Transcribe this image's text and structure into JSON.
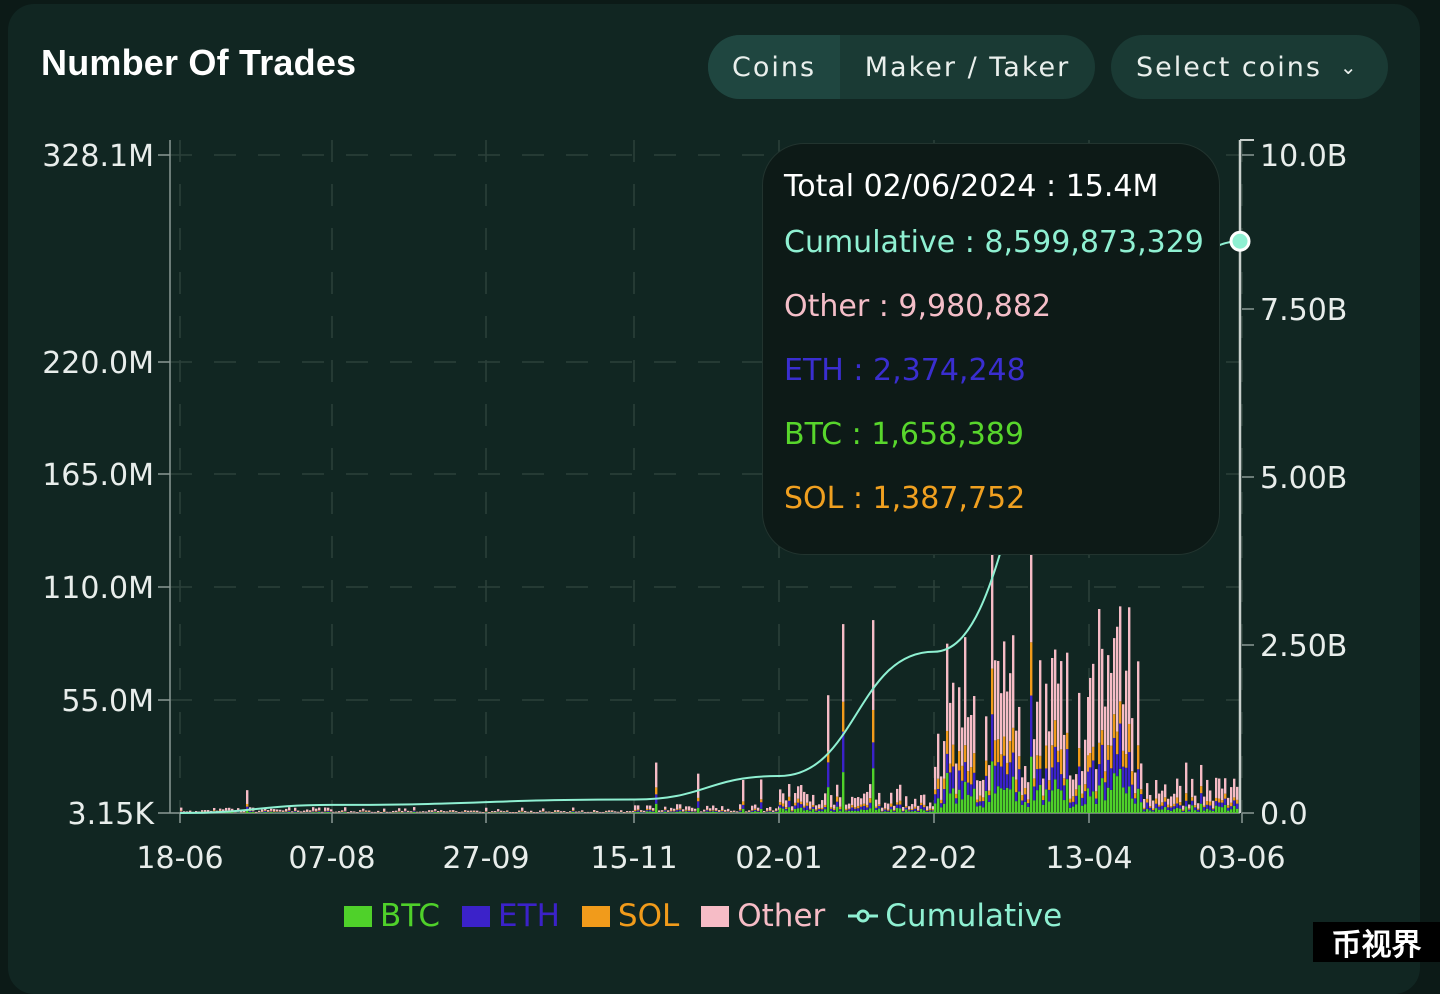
{
  "header": {
    "title": "Number Of Trades",
    "tabs": [
      {
        "label": "Coins",
        "active": true
      },
      {
        "label": "Maker / Taker",
        "active": false
      }
    ],
    "select_label": "Select coins",
    "chevron_icon": "chevron-down-icon"
  },
  "tooltip": {
    "total": "Total 02/06/2024 : 15.4M",
    "rows": [
      {
        "text": "Cumulative : 8,599,873,329",
        "color": "#8ff0d2"
      },
      {
        "text": "Other : 9,980,882",
        "color": "#f4bec8"
      },
      {
        "text": "ETH : 2,374,248",
        "color": "#3a2ed0"
      },
      {
        "text": "BTC : 1,658,389",
        "color": "#58d62c"
      },
      {
        "text": "SOL : 1,387,752",
        "color": "#f0a020"
      }
    ]
  },
  "watermark": "币视界",
  "chart_data": {
    "type": "bar",
    "title": "Number Of Trades",
    "left_axis": {
      "ticks": [
        3150,
        55000000,
        110000000,
        165000000,
        220000000,
        328100000
      ],
      "tick_labels": [
        "3.15K",
        "55.0M",
        "110.0M",
        "165.0M",
        "220.0M",
        "328.1M"
      ]
    },
    "right_axis": {
      "ticks": [
        0,
        2500000000,
        5000000000,
        7500000000,
        10000000000
      ],
      "tick_labels": [
        "0.0",
        "2.50B",
        "5.00B",
        "7.50B",
        "10.0B"
      ]
    },
    "x_ticks": [
      "18-06",
      "07-08",
      "27-09",
      "15-11",
      "02-01",
      "22-02",
      "13-04",
      "03-06"
    ],
    "grid": true,
    "legend_position": "bottom",
    "series": [
      {
        "name": "BTC",
        "color": "#4fd12a"
      },
      {
        "name": "ETH",
        "color": "#3b22c9"
      },
      {
        "name": "SOL",
        "color": "#f19b1b"
      },
      {
        "name": "Other",
        "color": "#f6bcc6"
      },
      {
        "name": "Cumulative",
        "color": "#8ff0d2"
      }
    ],
    "highlight": {
      "date": "02/06/2024",
      "total": 15400000,
      "cumulative": 8599873329,
      "Other": 9980882,
      "ETH": 2374248,
      "BTC": 1658389,
      "SOL": 1387752
    },
    "approx_totals_by_period": [
      {
        "period": "18-06 to 07-08",
        "typical_total": 2000000,
        "peak_total": 15000000
      },
      {
        "period": "07-08 to 15-11",
        "typical_total": 1000000,
        "peak_total": 3000000
      },
      {
        "period": "15-11 to 02-01",
        "typical_total": 3000000,
        "peak_total": 25000000
      },
      {
        "period": "02-01 to 22-02",
        "typical_total": 10000000,
        "peak_total": 95000000
      },
      {
        "period": "22-02 to 13-04",
        "typical_total": 60000000,
        "peak_total": 160000000
      },
      {
        "period": "13-04 to 24-04",
        "typical_total": 70000000,
        "peak_total": 130000000
      },
      {
        "period": "24-04 to 03-06",
        "typical_total": 12000000,
        "peak_total": 25000000
      }
    ],
    "cumulative_path": [
      {
        "x": "18-06",
        "y": 0
      },
      {
        "x": "07-08",
        "y": 120000000
      },
      {
        "x": "15-11",
        "y": 200000000
      },
      {
        "x": "02-01",
        "y": 550000000
      },
      {
        "x": "22-02",
        "y": 2400000000
      },
      {
        "x": "13-04",
        "y": 6500000000
      },
      {
        "x": "03-06",
        "y": 8599873329
      }
    ]
  }
}
